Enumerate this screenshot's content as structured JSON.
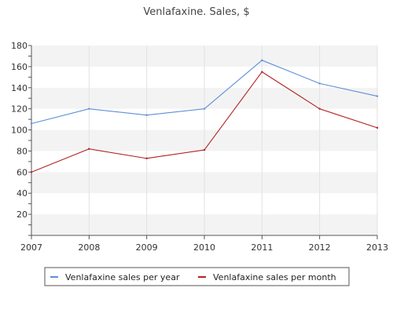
{
  "chart_data": {
    "type": "line",
    "title": "Venlafaxine. Sales, $",
    "xlabel": "",
    "ylabel": "",
    "x": [
      "2007",
      "2008",
      "2009",
      "2010",
      "2011",
      "2012",
      "2013"
    ],
    "y_ticks": [
      "20",
      "40",
      "60",
      "80",
      "100",
      "120",
      "140",
      "160",
      "180"
    ],
    "ylim": [
      0,
      180
    ],
    "grid": "alternating horizontal bands, vertical gridlines",
    "legend": "bottom",
    "series": [
      {
        "name": "Venlafaxine sales per year",
        "color": "#5b8fd8",
        "values": [
          106,
          120,
          114,
          120,
          166,
          144,
          132
        ]
      },
      {
        "name": "Venlafaxine sales per month",
        "color": "#b22222",
        "values": [
          60,
          82,
          73,
          81,
          155,
          120,
          102
        ]
      }
    ]
  }
}
